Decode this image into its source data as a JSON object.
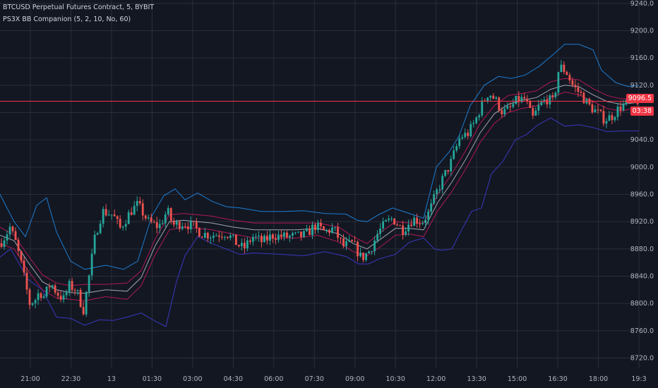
{
  "legend": {
    "symbol": "BTCUSD Perpetual Futures Contract, 5, BYBIT",
    "indicator": "PS3X BB Companion (5, 2, 10, No, 60)"
  },
  "current_price": "9096.5",
  "countdown": "03:38",
  "colors": {
    "background": "#131722",
    "grid": "#2a2e39",
    "up": "#26a69a",
    "down": "#ef5350",
    "band_outer": "#1e88e5",
    "band_inner": "#c2185b",
    "band_lower_outer": "#3f3ccf",
    "midline": "#b0b3c1",
    "price_line": "#f23645",
    "axis_text": "#b2b5be"
  },
  "chart_data": {
    "type": "candlestick",
    "title": "BTCUSD Perpetual Futures Contract, 5, BYBIT",
    "x_ticks": [
      "21:00",
      "22:30",
      "13",
      "01:30",
      "03:00",
      "04:30",
      "06:00",
      "07:30",
      "09:00",
      "10:30",
      "12:00",
      "13:30",
      "15:00",
      "16:30",
      "18:00",
      "19:3"
    ],
    "y_ticks": [
      9240,
      9200,
      9160,
      9120,
      9080,
      9040,
      9000,
      8960,
      8920,
      8880,
      8840,
      8800,
      8760,
      8720
    ],
    "ylim": [
      8705,
      9245
    ],
    "grid": true,
    "candle_count": 226,
    "close_anchors": [
      [
        0,
        8888
      ],
      [
        8,
        8900
      ],
      [
        14,
        8912
      ],
      [
        22,
        8890
      ],
      [
        30,
        8858
      ],
      [
        42,
        8800
      ],
      [
        50,
        8806
      ],
      [
        56,
        8818
      ],
      [
        62,
        8810
      ],
      [
        72,
        8830
      ],
      [
        80,
        8816
      ],
      [
        90,
        8806
      ],
      [
        98,
        8826
      ],
      [
        108,
        8820
      ],
      [
        118,
        8790
      ],
      [
        125,
        8832
      ],
      [
        135,
        8900
      ],
      [
        145,
        8935
      ],
      [
        160,
        8930
      ],
      [
        170,
        8910
      ],
      [
        185,
        8935
      ],
      [
        195,
        8945
      ],
      [
        210,
        8920
      ],
      [
        225,
        8912
      ],
      [
        237,
        8936
      ],
      [
        245,
        8915
      ],
      [
        260,
        8918
      ],
      [
        275,
        8912
      ],
      [
        285,
        8903
      ],
      [
        300,
        8900
      ],
      [
        320,
        8904
      ],
      [
        335,
        8888
      ],
      [
        345,
        8880
      ],
      [
        358,
        8898
      ],
      [
        372,
        8890
      ],
      [
        386,
        8900
      ],
      [
        402,
        8898
      ],
      [
        418,
        8898
      ],
      [
        432,
        8900
      ],
      [
        446,
        8914
      ],
      [
        460,
        8905
      ],
      [
        472,
        8910
      ],
      [
        486,
        8884
      ],
      [
        500,
        8888
      ],
      [
        512,
        8866
      ],
      [
        524,
        8878
      ],
      [
        536,
        8905
      ],
      [
        546,
        8917
      ],
      [
        556,
        8925
      ],
      [
        570,
        8908
      ],
      [
        585,
        8924
      ],
      [
        598,
        8920
      ],
      [
        608,
        8934
      ],
      [
        618,
        8962
      ],
      [
        628,
        8985
      ],
      [
        638,
        9005
      ],
      [
        652,
        9045
      ],
      [
        662,
        9048
      ],
      [
        672,
        9065
      ],
      [
        682,
        9090
      ],
      [
        692,
        9110
      ],
      [
        702,
        9098
      ],
      [
        712,
        9080
      ],
      [
        722,
        9085
      ],
      [
        732,
        9098
      ],
      [
        744,
        9100
      ],
      [
        754,
        9070
      ],
      [
        764,
        9090
      ],
      [
        774,
        9100
      ],
      [
        784,
        9095
      ],
      [
        792,
        9148
      ],
      [
        802,
        9140
      ],
      [
        812,
        9118
      ],
      [
        822,
        9108
      ],
      [
        834,
        9090
      ],
      [
        846,
        9080
      ],
      [
        856,
        9070
      ],
      [
        866,
        9074
      ],
      [
        878,
        9088
      ],
      [
        890,
        9094
      ],
      [
        900,
        9098
      ],
      [
        905,
        9097
      ]
    ],
    "upper_outer_anchors": [
      [
        0,
        8960
      ],
      [
        20,
        8920
      ],
      [
        36,
        8898
      ],
      [
        52,
        8944
      ],
      [
        66,
        8955
      ],
      [
        80,
        8905
      ],
      [
        100,
        8862
      ],
      [
        120,
        8850
      ],
      [
        150,
        8856
      ],
      [
        175,
        8850
      ],
      [
        195,
        8862
      ],
      [
        215,
        8928
      ],
      [
        232,
        8958
      ],
      [
        248,
        8968
      ],
      [
        262,
        8952
      ],
      [
        280,
        8962
      ],
      [
        300,
        8950
      ],
      [
        320,
        8942
      ],
      [
        340,
        8940
      ],
      [
        370,
        8935
      ],
      [
        400,
        8935
      ],
      [
        430,
        8936
      ],
      [
        460,
        8932
      ],
      [
        490,
        8931
      ],
      [
        506,
        8922
      ],
      [
        520,
        8920
      ],
      [
        536,
        8930
      ],
      [
        556,
        8940
      ],
      [
        580,
        8932
      ],
      [
        600,
        8925
      ],
      [
        618,
        9000
      ],
      [
        636,
        9022
      ],
      [
        650,
        9045
      ],
      [
        666,
        9090
      ],
      [
        686,
        9120
      ],
      [
        706,
        9133
      ],
      [
        724,
        9130
      ],
      [
        744,
        9135
      ],
      [
        764,
        9148
      ],
      [
        780,
        9162
      ],
      [
        800,
        9180
      ],
      [
        820,
        9180
      ],
      [
        840,
        9172
      ],
      [
        852,
        9142
      ],
      [
        872,
        9124
      ],
      [
        890,
        9118
      ],
      [
        905,
        9120
      ]
    ],
    "upper_inner_anchors": [
      [
        0,
        8912
      ],
      [
        20,
        8900
      ],
      [
        40,
        8870
      ],
      [
        60,
        8842
      ],
      [
        80,
        8830
      ],
      [
        100,
        8826
      ],
      [
        120,
        8828
      ],
      [
        150,
        8828
      ],
      [
        180,
        8830
      ],
      [
        200,
        8848
      ],
      [
        220,
        8895
      ],
      [
        240,
        8930
      ],
      [
        260,
        8932
      ],
      [
        280,
        8930
      ],
      [
        300,
        8928
      ],
      [
        330,
        8922
      ],
      [
        360,
        8918
      ],
      [
        390,
        8918
      ],
      [
        420,
        8918
      ],
      [
        450,
        8918
      ],
      [
        480,
        8912
      ],
      [
        500,
        8898
      ],
      [
        520,
        8888
      ],
      [
        540,
        8905
      ],
      [
        560,
        8920
      ],
      [
        580,
        8918
      ],
      [
        600,
        8918
      ],
      [
        620,
        8960
      ],
      [
        640,
        8990
      ],
      [
        660,
        9025
      ],
      [
        680,
        9064
      ],
      [
        700,
        9090
      ],
      [
        720,
        9105
      ],
      [
        740,
        9108
      ],
      [
        760,
        9112
      ],
      [
        780,
        9125
      ],
      [
        800,
        9130
      ],
      [
        820,
        9128
      ],
      [
        840,
        9115
      ],
      [
        860,
        9105
      ],
      [
        880,
        9100
      ],
      [
        905,
        9102
      ]
    ],
    "mid_anchors": [
      [
        0,
        8900
      ],
      [
        20,
        8892
      ],
      [
        40,
        8860
      ],
      [
        60,
        8832
      ],
      [
        80,
        8820
      ],
      [
        100,
        8816
      ],
      [
        120,
        8815
      ],
      [
        150,
        8820
      ],
      [
        180,
        8818
      ],
      [
        200,
        8838
      ],
      [
        220,
        8885
      ],
      [
        240,
        8920
      ],
      [
        260,
        8922
      ],
      [
        280,
        8920
      ],
      [
        300,
        8918
      ],
      [
        330,
        8912
      ],
      [
        360,
        8908
      ],
      [
        390,
        8908
      ],
      [
        420,
        8908
      ],
      [
        450,
        8910
      ],
      [
        480,
        8902
      ],
      [
        500,
        8888
      ],
      [
        520,
        8880
      ],
      [
        540,
        8895
      ],
      [
        560,
        8910
      ],
      [
        580,
        8910
      ],
      [
        600,
        8908
      ],
      [
        620,
        8948
      ],
      [
        640,
        8978
      ],
      [
        660,
        9012
      ],
      [
        680,
        9050
      ],
      [
        700,
        9078
      ],
      [
        720,
        9092
      ],
      [
        740,
        9098
      ],
      [
        760,
        9102
      ],
      [
        780,
        9114
      ],
      [
        800,
        9120
      ],
      [
        820,
        9118
      ],
      [
        840,
        9106
      ],
      [
        860,
        9096
      ],
      [
        880,
        9092
      ],
      [
        905,
        9095
      ]
    ],
    "lower_inner_anchors": [
      [
        0,
        8888
      ],
      [
        20,
        8880
      ],
      [
        40,
        8848
      ],
      [
        60,
        8820
      ],
      [
        80,
        8808
      ],
      [
        100,
        8806
      ],
      [
        120,
        8804
      ],
      [
        150,
        8810
      ],
      [
        180,
        8806
      ],
      [
        200,
        8826
      ],
      [
        220,
        8872
      ],
      [
        240,
        8908
      ],
      [
        260,
        8912
      ],
      [
        280,
        8910
      ],
      [
        300,
        8908
      ],
      [
        330,
        8902
      ],
      [
        360,
        8896
      ],
      [
        390,
        8896
      ],
      [
        420,
        8896
      ],
      [
        450,
        8900
      ],
      [
        480,
        8890
      ],
      [
        500,
        8876
      ],
      [
        520,
        8870
      ],
      [
        540,
        8884
      ],
      [
        560,
        8900
      ],
      [
        580,
        8902
      ],
      [
        600,
        8898
      ],
      [
        620,
        8936
      ],
      [
        640,
        8964
      ],
      [
        660,
        8998
      ],
      [
        680,
        9036
      ],
      [
        700,
        9064
      ],
      [
        720,
        9080
      ],
      [
        740,
        9086
      ],
      [
        760,
        9090
      ],
      [
        780,
        9102
      ],
      [
        800,
        9110
      ],
      [
        820,
        9106
      ],
      [
        840,
        9096
      ],
      [
        860,
        9086
      ],
      [
        880,
        9082
      ],
      [
        905,
        9088
      ]
    ],
    "lower_outer_anchors": [
      [
        0,
        8868
      ],
      [
        15,
        8880
      ],
      [
        25,
        8862
      ],
      [
        40,
        8835
      ],
      [
        60,
        8820
      ],
      [
        80,
        8780
      ],
      [
        100,
        8778
      ],
      [
        120,
        8768
      ],
      [
        140,
        8776
      ],
      [
        160,
        8775
      ],
      [
        180,
        8780
      ],
      [
        200,
        8786
      ],
      [
        220,
        8774
      ],
      [
        235,
        8766
      ],
      [
        250,
        8832
      ],
      [
        262,
        8870
      ],
      [
        280,
        8898
      ],
      [
        300,
        8888
      ],
      [
        320,
        8880
      ],
      [
        340,
        8872
      ],
      [
        360,
        8874
      ],
      [
        400,
        8872
      ],
      [
        430,
        8870
      ],
      [
        460,
        8876
      ],
      [
        490,
        8869
      ],
      [
        508,
        8858
      ],
      [
        522,
        8858
      ],
      [
        536,
        8865
      ],
      [
        560,
        8872
      ],
      [
        580,
        8890
      ],
      [
        600,
        8896
      ],
      [
        615,
        8880
      ],
      [
        625,
        8878
      ],
      [
        640,
        8880
      ],
      [
        655,
        8910
      ],
      [
        668,
        8935
      ],
      [
        682,
        8940
      ],
      [
        696,
        8990
      ],
      [
        712,
        9008
      ],
      [
        730,
        9040
      ],
      [
        746,
        9048
      ],
      [
        762,
        9062
      ],
      [
        780,
        9072
      ],
      [
        800,
        9060
      ],
      [
        820,
        9062
      ],
      [
        840,
        9058
      ],
      [
        860,
        9052
      ],
      [
        880,
        9053
      ],
      [
        905,
        9053
      ]
    ]
  }
}
